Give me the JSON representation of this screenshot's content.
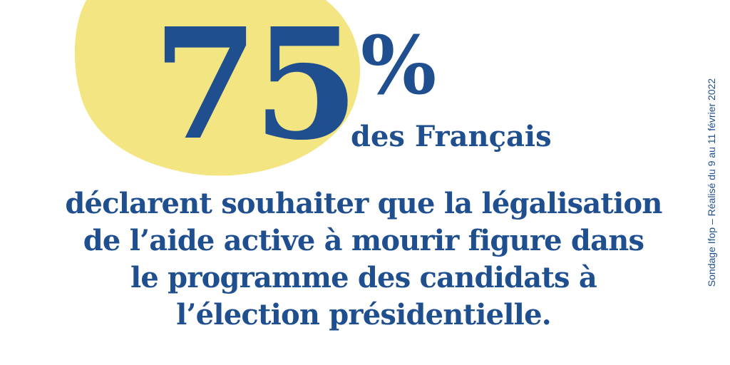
{
  "colors": {
    "accent": "#1f4f8f",
    "blob": "#f3e682",
    "background": "#ffffff"
  },
  "stat": {
    "number": "75",
    "sign": "%",
    "subhead": "des Français"
  },
  "statement": {
    "lines": [
      "déclarent souhaiter que la légalisation",
      "de l’aide active à mourir figure dans",
      "le programme des candidats à",
      "l’élection présidentielle."
    ]
  },
  "source": {
    "text": "Sondage Ifop – Réalisé du 9 au 11 février 2022"
  }
}
